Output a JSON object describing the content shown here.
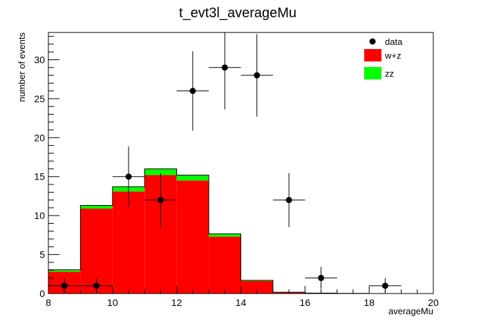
{
  "chart_data": {
    "type": "bar",
    "stacked": true,
    "title": "t_evt3l_averageMu",
    "xlabel": "averageMu",
    "ylabel": "number of events",
    "xlim": [
      8,
      20
    ],
    "ylim": [
      0,
      33.5
    ],
    "x_ticks": [
      8,
      10,
      12,
      14,
      16,
      18,
      20
    ],
    "y_ticks": [
      0,
      5,
      10,
      15,
      20,
      25,
      30
    ],
    "bin_edges": [
      8,
      9,
      10,
      11,
      12,
      13,
      14,
      15,
      16,
      17,
      18,
      19,
      20
    ],
    "legend_position": "top-right",
    "series": [
      {
        "name": "w+z",
        "color": "#ff0000",
        "values": [
          2.8,
          10.9,
          13.1,
          15.2,
          14.5,
          7.3,
          1.6,
          0.15,
          0.05,
          0.02,
          0,
          0
        ]
      },
      {
        "name": "zz",
        "color": "#00ff00",
        "values": [
          0.25,
          0.4,
          0.6,
          0.8,
          0.7,
          0.35,
          0.1,
          0.02,
          0,
          0,
          0,
          0
        ]
      }
    ],
    "data": {
      "name": "data",
      "x": [
        8.5,
        9.5,
        10.5,
        11.5,
        12.5,
        13.5,
        14.5,
        15.5,
        16.5,
        18.5
      ],
      "y": [
        1,
        1,
        15,
        12,
        26,
        29,
        28,
        12,
        2,
        1
      ]
    }
  }
}
